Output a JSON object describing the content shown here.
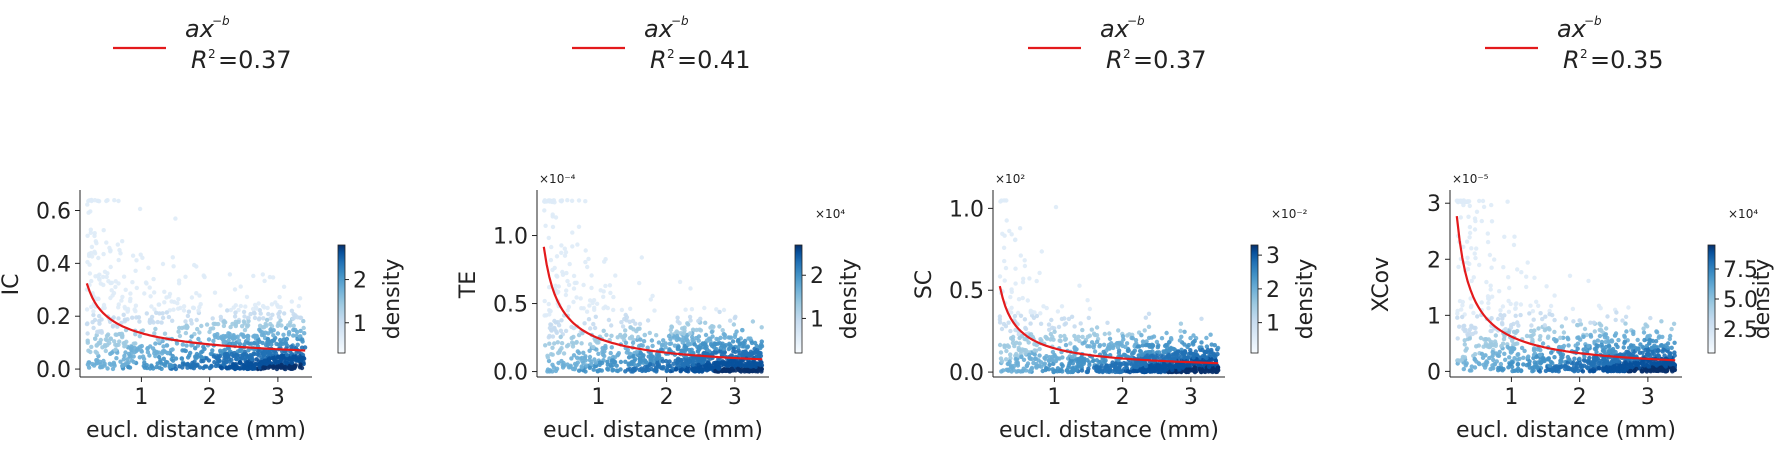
{
  "figure": {
    "fit_color": "#e31a1c",
    "colormap": [
      "#f7fbff",
      "#deebf7",
      "#c6dbef",
      "#9ecae1",
      "#6baed6",
      "#4292c6",
      "#2171b5",
      "#08519c",
      "#08306b"
    ]
  },
  "chart_data": [
    {
      "type": "scatter",
      "xlabel": "eucl. distance (mm)",
      "ylabel": "IC",
      "y_multiplier": "",
      "xlim": [
        0.1,
        3.5
      ],
      "ylim": [
        -0.03,
        0.67
      ],
      "xticks": [
        1,
        2,
        3
      ],
      "xtick_labels": [
        "1",
        "2",
        "3"
      ],
      "yticks": [
        0.0,
        0.2,
        0.4,
        0.6
      ],
      "ytick_labels": [
        "0.0",
        "0.2",
        "0.4",
        "0.6"
      ],
      "y_cap": 0.64,
      "fit": {
        "a": 0.136,
        "b": 0.54,
        "x_start": 0.2,
        "x_end": 3.4
      },
      "legend": {
        "equation_base": "ax",
        "equation_exp": "−b",
        "r2_label": "R",
        "r2_sup": "2",
        "r2_value": "=0.37"
      },
      "colorbar": {
        "label": "density",
        "multiplier": "",
        "ticks": [
          1,
          2
        ],
        "tick_labels": [
          "1",
          "2"
        ],
        "range": [
          0.3,
          2.8
        ]
      }
    },
    {
      "type": "scatter",
      "xlabel": "eucl. distance (mm)",
      "ylabel": "TE",
      "y_multiplier": "×10⁻⁴",
      "xlim": [
        0.1,
        3.5
      ],
      "ylim": [
        -0.04,
        1.32
      ],
      "xticks": [
        1,
        2,
        3
      ],
      "xtick_labels": [
        "1",
        "2",
        "3"
      ],
      "yticks": [
        0.0,
        0.5,
        1.0
      ],
      "ytick_labels": [
        "0.0",
        "0.5",
        "1.0"
      ],
      "y_cap": 1.26,
      "fit": {
        "a": 0.245,
        "b": 0.82,
        "x_start": 0.2,
        "x_end": 3.4
      },
      "legend": {
        "equation_base": "ax",
        "equation_exp": "−b",
        "r2_label": "R",
        "r2_sup": "2",
        "r2_value": "=0.41"
      },
      "colorbar": {
        "label": "density",
        "multiplier": "×10⁴",
        "ticks": [
          1,
          2
        ],
        "tick_labels": [
          "1",
          "2"
        ],
        "range": [
          0.2,
          2.7
        ]
      }
    },
    {
      "type": "scatter",
      "xlabel": "eucl. distance (mm)",
      "ylabel": "SC",
      "y_multiplier": "×10²",
      "xlim": [
        0.1,
        3.5
      ],
      "ylim": [
        -0.03,
        1.1
      ],
      "xticks": [
        1,
        2,
        3
      ],
      "xtick_labels": [
        "1",
        "2",
        "3"
      ],
      "yticks": [
        0.0,
        0.5,
        1.0
      ],
      "ytick_labels": [
        "0.0",
        "0.5",
        "1.0"
      ],
      "y_cap": 1.05,
      "fit": {
        "a": 0.145,
        "b": 0.8,
        "x_start": 0.2,
        "x_end": 3.4
      },
      "legend": {
        "equation_base": "ax",
        "equation_exp": "−b",
        "r2_label": "R",
        "r2_sup": "2",
        "r2_value": "=0.37"
      },
      "colorbar": {
        "label": "density",
        "multiplier": "×10⁻²",
        "ticks": [
          1,
          2,
          3
        ],
        "tick_labels": [
          "1",
          "2",
          "3"
        ],
        "range": [
          0.1,
          3.3
        ]
      }
    },
    {
      "type": "scatter",
      "xlabel": "eucl. distance (mm)",
      "ylabel": "XCov",
      "y_multiplier": "×10⁻⁵",
      "xlim": [
        0.1,
        3.5
      ],
      "ylim": [
        -0.1,
        3.2
      ],
      "xticks": [
        1,
        2,
        3
      ],
      "xtick_labels": [
        "1",
        "2",
        "3"
      ],
      "yticks": [
        0,
        1,
        2,
        3
      ],
      "ytick_labels": [
        "0",
        "1",
        "2",
        "3"
      ],
      "y_cap": 3.05,
      "fit": {
        "a": 0.62,
        "b": 0.93,
        "x_start": 0.2,
        "x_end": 3.4
      },
      "legend": {
        "equation_base": "ax",
        "equation_exp": "−b",
        "r2_label": "R",
        "r2_sup": "2",
        "r2_value": "=0.35"
      },
      "colorbar": {
        "label": "density",
        "multiplier": "×10⁴",
        "ticks": [
          2.5,
          5.0,
          7.5
        ],
        "tick_labels": [
          "2.5",
          "5.0",
          "7.5"
        ],
        "range": [
          0.5,
          9.5
        ]
      }
    }
  ]
}
